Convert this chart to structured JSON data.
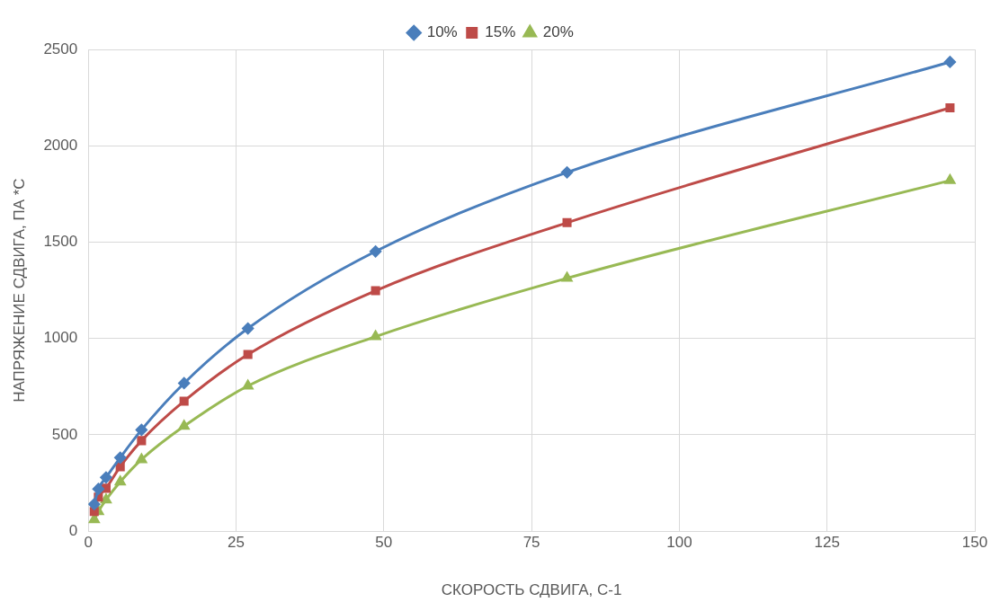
{
  "chart_data": {
    "type": "line",
    "xlabel": "СКОРОСТЬ СДВИГА, С-1",
    "ylabel": "НАПРЯЖЕНИЕ СДВИГА, ПА *С",
    "x": [
      1,
      1.7,
      3,
      5.4,
      9,
      16.2,
      27,
      48.6,
      81,
      145.8
    ],
    "series": [
      {
        "name": "10%",
        "color": "#4a7ebb",
        "marker": "diamond",
        "values": [
          140,
          219,
          279,
          382,
          526,
          768,
          1052,
          1452,
          1862,
          2435
        ]
      },
      {
        "name": "15%",
        "color": "#be4b48",
        "marker": "square",
        "values": [
          102,
          177,
          223,
          335,
          470,
          675,
          917,
          1248,
          1601,
          2197
        ]
      },
      {
        "name": "20%",
        "color": "#98b954",
        "marker": "triangle",
        "values": [
          60,
          102,
          163,
          256,
          372,
          545,
          754,
          1010,
          1313,
          1820
        ]
      }
    ],
    "xlim": [
      0,
      150
    ],
    "xticks": [
      0,
      25,
      50,
      75,
      100,
      125,
      150
    ],
    "ylim": [
      0,
      2500
    ],
    "yticks": [
      0,
      500,
      1000,
      1500,
      2000,
      2500
    ],
    "grid": true,
    "legend": "top",
    "line_style": "solid"
  }
}
